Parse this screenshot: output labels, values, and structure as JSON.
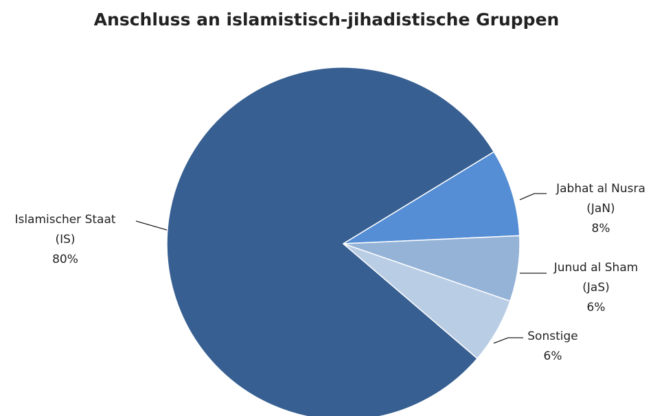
{
  "chart_data": {
    "type": "pie",
    "title": "Anschluss an islamistisch-jihadistische Gruppen",
    "categories": [
      "Islamischer Staat (IS)",
      "Jabhat al Nusra (JaN)",
      "Junud al Sham (JaS)",
      "Sonstige"
    ],
    "values": [
      80,
      8,
      6,
      6
    ],
    "value_labels": [
      "80%",
      "8%",
      "6%",
      "6%"
    ],
    "colors": [
      "#375f91",
      "#558ed5",
      "#95b3d7",
      "#b9cde5"
    ]
  }
}
